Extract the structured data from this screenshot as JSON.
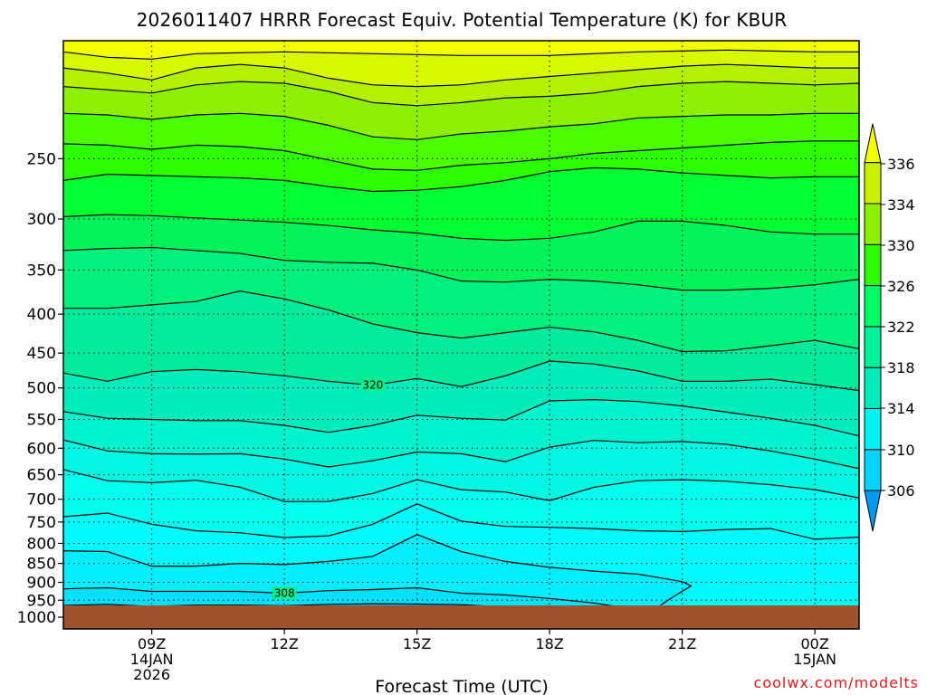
{
  "chart_data": {
    "type": "heatmap",
    "title": "2026011407 HRRR Forecast Equiv. Potential Temperature (K) for KBUR",
    "xlabel": "Forecast Time (UTC)",
    "ylabel": "",
    "y_scale": "log",
    "y_reversed": true,
    "ylim": [
      1000,
      175
    ],
    "y_ticks": [
      250,
      300,
      350,
      400,
      450,
      500,
      550,
      600,
      650,
      700,
      750,
      800,
      850,
      900,
      950,
      1000
    ],
    "x_ticks": [
      {
        "hour": 9,
        "lines": [
          "09Z",
          "14JAN",
          "2026"
        ]
      },
      {
        "hour": 12,
        "lines": [
          "12Z"
        ]
      },
      {
        "hour": 15,
        "lines": [
          "15Z"
        ]
      },
      {
        "hour": 18,
        "lines": [
          "18Z"
        ]
      },
      {
        "hour": 21,
        "lines": [
          "21Z"
        ]
      },
      {
        "hour": 24,
        "lines": [
          "00Z",
          "15JAN"
        ]
      }
    ],
    "xlim": [
      7,
      25
    ],
    "grid": true,
    "colorbar": {
      "levels": [
        306,
        310,
        314,
        318,
        322,
        326,
        330,
        334,
        336
      ],
      "labels": [
        "306",
        "310",
        "314",
        "318",
        "322",
        "326",
        "330",
        "334",
        "336"
      ],
      "colors": [
        "#0099f0",
        "#00d4ff",
        "#00ffe4",
        "#00ecbb",
        "#00f08c",
        "#00ff4a",
        "#2cff00",
        "#90ef00",
        "#c8f200",
        "#f2ff00"
      ]
    },
    "contours": [
      {
        "level": 336,
        "points": [
          [
            7,
            335
          ],
          [
            9,
            335
          ],
          [
            11,
            335
          ],
          [
            13,
            335
          ],
          [
            15,
            335
          ],
          [
            17,
            335
          ],
          [
            19,
            335
          ],
          [
            21,
            335
          ],
          [
            23,
            335
          ],
          [
            25,
            335
          ]
        ]
      },
      {
        "level": 334,
        "points": [
          [
            7,
            333
          ],
          [
            9,
            333
          ],
          [
            11,
            333
          ],
          [
            13,
            333
          ],
          [
            15,
            333
          ],
          [
            17,
            333
          ],
          [
            19,
            333
          ],
          [
            21,
            333
          ],
          [
            23,
            333
          ],
          [
            25,
            333
          ]
        ]
      },
      {
        "level": 332,
        "points": [
          [
            7,
            332
          ],
          [
            9,
            332
          ],
          [
            11,
            332
          ],
          [
            13,
            332
          ],
          [
            15,
            332
          ],
          [
            17,
            332
          ],
          [
            19,
            332
          ],
          [
            21,
            332
          ],
          [
            23,
            332
          ],
          [
            25,
            332
          ]
        ]
      },
      {
        "level": 330,
        "points": [
          [
            7,
            330
          ],
          [
            9,
            330
          ],
          [
            11,
            330
          ],
          [
            13,
            330
          ],
          [
            15,
            330
          ],
          [
            17,
            330
          ],
          [
            19,
            330
          ],
          [
            21,
            330
          ],
          [
            23,
            330
          ],
          [
            25,
            330
          ]
        ]
      },
      {
        "level": 320,
        "label": "320",
        "label_x": 14,
        "points": [
          [
            7,
            320
          ],
          [
            25,
            320
          ]
        ]
      },
      {
        "level": 308,
        "label": "308",
        "label_x": 12,
        "points": [
          [
            7,
            308
          ],
          [
            25,
            308
          ]
        ]
      }
    ],
    "contour_lines_hpa": [
      [
        [
          7,
          181
        ],
        [
          8,
          184
        ],
        [
          9,
          185
        ],
        [
          10,
          182
        ],
        [
          12,
          181
        ],
        [
          14,
          182
        ],
        [
          16,
          183
        ],
        [
          18,
          183
        ],
        [
          20,
          181
        ],
        [
          22,
          180
        ],
        [
          24,
          181
        ],
        [
          25,
          181
        ]
      ],
      [
        [
          7,
          190
        ],
        [
          8,
          193
        ],
        [
          9,
          197
        ],
        [
          10,
          190
        ],
        [
          11,
          188
        ],
        [
          12,
          190
        ],
        [
          13,
          196
        ],
        [
          14,
          200
        ],
        [
          15,
          201
        ],
        [
          16,
          200
        ],
        [
          17,
          197
        ],
        [
          18,
          195
        ],
        [
          19,
          193
        ],
        [
          20,
          191
        ],
        [
          21,
          189
        ],
        [
          22,
          188
        ],
        [
          23,
          189
        ],
        [
          24,
          190
        ],
        [
          25,
          190
        ]
      ],
      [
        [
          7,
          201
        ],
        [
          8,
          203
        ],
        [
          9,
          205
        ],
        [
          10,
          200
        ],
        [
          11,
          198
        ],
        [
          12,
          199
        ],
        [
          13,
          204
        ],
        [
          14,
          211
        ],
        [
          15,
          213
        ],
        [
          16,
          211
        ],
        [
          17,
          208
        ],
        [
          18,
          207
        ],
        [
          19,
          205
        ],
        [
          20,
          201
        ],
        [
          21,
          199
        ],
        [
          22,
          198
        ],
        [
          23,
          199
        ],
        [
          24,
          200
        ],
        [
          25,
          199
        ]
      ],
      [
        [
          7,
          218
        ],
        [
          8,
          219
        ],
        [
          9,
          222
        ],
        [
          10,
          219
        ],
        [
          11,
          218
        ],
        [
          12,
          220
        ],
        [
          13,
          226
        ],
        [
          14,
          234
        ],
        [
          15,
          236
        ],
        [
          16,
          232
        ],
        [
          17,
          230
        ],
        [
          18,
          227
        ],
        [
          19,
          225
        ],
        [
          20,
          221
        ],
        [
          21,
          220
        ],
        [
          22,
          219
        ],
        [
          23,
          219
        ],
        [
          24,
          218
        ],
        [
          25,
          218
        ]
      ],
      [
        [
          7,
          239
        ],
        [
          8,
          240
        ],
        [
          9,
          243
        ],
        [
          10,
          240
        ],
        [
          11,
          241
        ],
        [
          12,
          244
        ],
        [
          13,
          251
        ],
        [
          14,
          258
        ],
        [
          15,
          259
        ],
        [
          16,
          255
        ],
        [
          17,
          253
        ],
        [
          18,
          250
        ],
        [
          19,
          246
        ],
        [
          20,
          244
        ],
        [
          21,
          242
        ],
        [
          22,
          240
        ],
        [
          23,
          238
        ],
        [
          24,
          237
        ],
        [
          25,
          237
        ]
      ],
      [
        [
          7,
          267
        ],
        [
          8,
          262
        ],
        [
          9,
          263
        ],
        [
          10,
          264
        ],
        [
          11,
          265
        ],
        [
          12,
          267
        ],
        [
          13,
          272
        ],
        [
          14,
          276
        ],
        [
          15,
          275
        ],
        [
          16,
          272
        ],
        [
          17,
          267
        ],
        [
          18,
          260
        ],
        [
          19,
          257
        ],
        [
          20,
          258
        ],
        [
          21,
          261
        ],
        [
          22,
          263
        ],
        [
          23,
          265
        ],
        [
          24,
          264
        ],
        [
          25,
          264
        ]
      ],
      [
        [
          7,
          298
        ],
        [
          8,
          296
        ],
        [
          9,
          297
        ],
        [
          10,
          299
        ],
        [
          11,
          301
        ],
        [
          12,
          303
        ],
        [
          13,
          306
        ],
        [
          14,
          310
        ],
        [
          15,
          313
        ],
        [
          16,
          318
        ],
        [
          17,
          320
        ],
        [
          18,
          318
        ],
        [
          19,
          312
        ],
        [
          20,
          302
        ],
        [
          21,
          302
        ],
        [
          22,
          306
        ],
        [
          23,
          312
        ],
        [
          24,
          314
        ],
        [
          25,
          314
        ]
      ],
      [
        [
          7,
          330
        ],
        [
          8,
          328
        ],
        [
          9,
          327
        ],
        [
          10,
          330
        ],
        [
          11,
          333
        ],
        [
          12,
          340
        ],
        [
          13,
          342
        ],
        [
          14,
          343
        ],
        [
          15,
          350
        ],
        [
          16,
          362
        ],
        [
          17,
          363
        ],
        [
          18,
          360
        ],
        [
          19,
          362
        ],
        [
          20,
          366
        ],
        [
          21,
          372
        ],
        [
          22,
          372
        ],
        [
          23,
          370
        ],
        [
          24,
          366
        ],
        [
          25,
          360
        ]
      ],
      [
        [
          7,
          393
        ],
        [
          8,
          393
        ],
        [
          9,
          389
        ],
        [
          10,
          385
        ],
        [
          11,
          373
        ],
        [
          12,
          382
        ],
        [
          13,
          395
        ],
        [
          14,
          412
        ],
        [
          15,
          423
        ],
        [
          16,
          430
        ],
        [
          17,
          423
        ],
        [
          18,
          416
        ],
        [
          19,
          422
        ],
        [
          20,
          433
        ],
        [
          21,
          448
        ],
        [
          22,
          447
        ],
        [
          23,
          440
        ],
        [
          24,
          433
        ],
        [
          25,
          444
        ]
      ],
      [
        [
          7,
          478
        ],
        [
          8,
          490
        ],
        [
          9,
          476
        ],
        [
          10,
          473
        ],
        [
          11,
          476
        ],
        [
          12,
          482
        ],
        [
          13,
          490
        ],
        [
          14,
          496
        ],
        [
          15,
          486
        ],
        [
          16,
          498
        ],
        [
          17,
          482
        ],
        [
          18,
          461
        ],
        [
          19,
          465
        ],
        [
          20,
          475
        ],
        [
          21,
          490
        ],
        [
          22,
          490
        ],
        [
          23,
          487
        ],
        [
          24,
          495
        ],
        [
          25,
          504
        ]
      ],
      [
        [
          7,
          537
        ],
        [
          8,
          548
        ],
        [
          9,
          550
        ],
        [
          10,
          552
        ],
        [
          11,
          552
        ],
        [
          12,
          560
        ],
        [
          13,
          572
        ],
        [
          14,
          560
        ],
        [
          15,
          543
        ],
        [
          16,
          548
        ],
        [
          17,
          551
        ],
        [
          18,
          520
        ],
        [
          19,
          518
        ],
        [
          20,
          521
        ],
        [
          21,
          528
        ],
        [
          22,
          538
        ],
        [
          23,
          548
        ],
        [
          24,
          560
        ],
        [
          25,
          578
        ]
      ],
      [
        [
          7,
          585
        ],
        [
          8,
          605
        ],
        [
          9,
          610
        ],
        [
          10,
          611
        ],
        [
          11,
          610
        ],
        [
          12,
          620
        ],
        [
          13,
          635
        ],
        [
          14,
          623
        ],
        [
          15,
          607
        ],
        [
          16,
          610
        ],
        [
          17,
          625
        ],
        [
          18,
          598
        ],
        [
          19,
          586
        ],
        [
          20,
          590
        ],
        [
          21,
          588
        ],
        [
          22,
          593
        ],
        [
          23,
          605
        ],
        [
          24,
          620
        ],
        [
          25,
          638
        ]
      ],
      [
        [
          7,
          640
        ],
        [
          8,
          662
        ],
        [
          9,
          666
        ],
        [
          10,
          661
        ],
        [
          11,
          675
        ],
        [
          12,
          705
        ],
        [
          13,
          705
        ],
        [
          14,
          688
        ],
        [
          15,
          660
        ],
        [
          16,
          680
        ],
        [
          17,
          685
        ],
        [
          18,
          703
        ],
        [
          19,
          675
        ],
        [
          20,
          662
        ],
        [
          21,
          660
        ],
        [
          22,
          663
        ],
        [
          23,
          670
        ],
        [
          24,
          680
        ],
        [
          25,
          697
        ]
      ],
      [
        [
          7,
          738
        ],
        [
          8,
          730
        ],
        [
          9,
          755
        ],
        [
          10,
          770
        ],
        [
          11,
          775
        ],
        [
          12,
          786
        ],
        [
          13,
          782
        ],
        [
          14,
          755
        ],
        [
          15,
          710
        ],
        [
          16,
          748
        ],
        [
          17,
          760
        ],
        [
          18,
          762
        ],
        [
          19,
          765
        ],
        [
          20,
          770
        ],
        [
          21,
          772
        ],
        [
          22,
          767
        ],
        [
          23,
          765
        ],
        [
          24,
          790
        ],
        [
          25,
          785
        ]
      ],
      [
        [
          7,
          818
        ],
        [
          8,
          820
        ],
        [
          9,
          857
        ],
        [
          10,
          857
        ],
        [
          11,
          850
        ],
        [
          12,
          853
        ],
        [
          13,
          845
        ],
        [
          14,
          832
        ],
        [
          15,
          779
        ],
        [
          16,
          820
        ],
        [
          17,
          845
        ],
        [
          18,
          860
        ],
        [
          19,
          870
        ],
        [
          20,
          878
        ],
        [
          21,
          898
        ],
        [
          21.2,
          910
        ],
        [
          20.8,
          940
        ],
        [
          20.5,
          965
        ]
      ],
      [
        [
          7,
          918
        ],
        [
          8,
          915
        ],
        [
          9,
          925
        ],
        [
          10,
          925
        ],
        [
          11,
          925
        ],
        [
          12,
          930
        ],
        [
          13,
          923
        ],
        [
          14,
          920
        ],
        [
          15,
          915
        ],
        [
          16,
          930
        ],
        [
          17,
          935
        ],
        [
          18,
          945
        ],
        [
          19,
          958
        ],
        [
          19.5,
          968
        ]
      ],
      [
        [
          7,
          965
        ],
        [
          8,
          962
        ],
        [
          9,
          968
        ],
        [
          10,
          964
        ],
        [
          11,
          964
        ],
        [
          12,
          966
        ],
        [
          13,
          962
        ],
        [
          14,
          960
        ],
        [
          15,
          961
        ],
        [
          16,
          963
        ],
        [
          17,
          970
        ],
        [
          18,
          975
        ]
      ]
    ]
  },
  "credit": "coolwx.com/modelts"
}
